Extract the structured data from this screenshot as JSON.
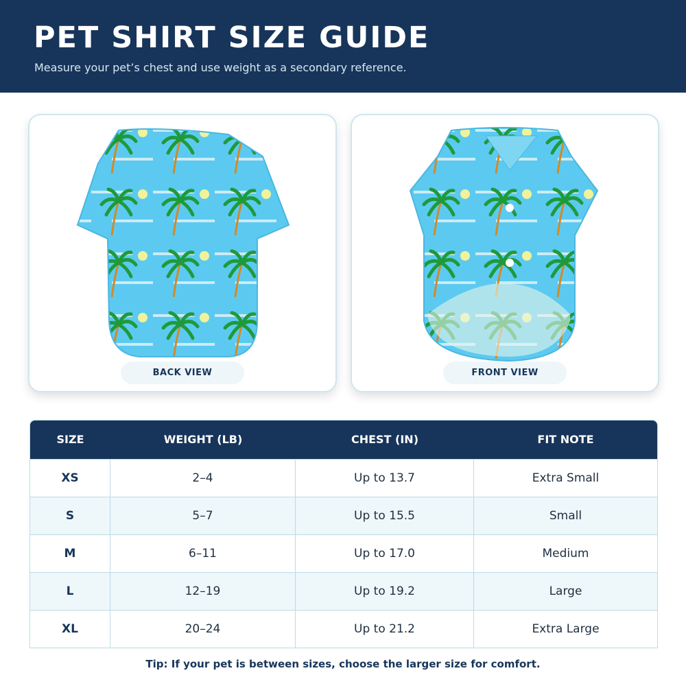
{
  "header": {
    "title": "PET SHIRT SIZE GUIDE",
    "subtitle": "Measure your pet’s chest and use weight as a secondary reference."
  },
  "views": [
    {
      "label": "BACK VIEW"
    },
    {
      "label": "FRONT VIEW"
    }
  ],
  "table": {
    "columns": [
      "SIZE",
      "WEIGHT (LB)",
      "CHEST (IN)",
      "FIT NOTE"
    ],
    "rows": [
      [
        "XS",
        "2–4",
        "Up to 13.7",
        "Extra Small"
      ],
      [
        "S",
        "5–7",
        "Up to 15.5",
        "Small"
      ],
      [
        "M",
        "6–11",
        "Up to 17.0",
        "Medium"
      ],
      [
        "L",
        "12–19",
        "Up to 19.2",
        "Large"
      ],
      [
        "XL",
        "20–24",
        "Up to 21.2",
        "Extra Large"
      ]
    ]
  },
  "tip": "Tip: If your pet is between sizes, choose the larger size for comfort."
}
